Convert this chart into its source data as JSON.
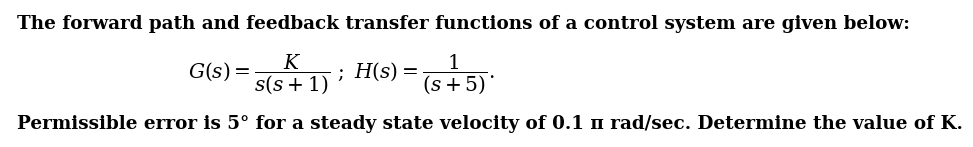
{
  "line1": "The forward path and feedback transfer functions of a control system are given below:",
  "line3_prefix": "Permissible error is 5° for a steady state velocity of 0.1 π rad/sec. Determine the value of ",
  "line3_suffix": ".",
  "eq_str": "$\\mathbf{G(s) = \\dfrac{K}{s(s+1)}\\;\\; ; H(s) = \\dfrac{1}{(s+5)}.}$",
  "bg_color": "#ffffff",
  "text_color": "#000000",
  "font_size_top": 13.2,
  "font_size_eq": 13.5,
  "font_size_bot": 13.2
}
